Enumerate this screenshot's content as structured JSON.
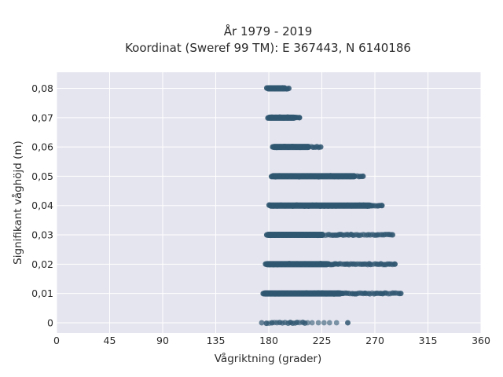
{
  "chart_data": {
    "type": "scatter",
    "title_line1": "År 1979 - 2019",
    "title_line2": "Koordinat (Sweref 99 TM): E 367443, N 6140186",
    "xlabel": "Vågriktning (grader)",
    "ylabel": "Signifikant våghöjd (m)",
    "xlim": [
      0,
      360
    ],
    "ylim": [
      -0.0035,
      0.0855
    ],
    "x_ticks": [
      0,
      45,
      90,
      135,
      180,
      225,
      270,
      315,
      360
    ],
    "x_tick_labels": [
      "0",
      "45",
      "90",
      "135",
      "180",
      "225",
      "270",
      "315",
      "360"
    ],
    "y_ticks": [
      0,
      0.01,
      0.02,
      0.03,
      0.04,
      0.05,
      0.06,
      0.07,
      0.08
    ],
    "y_tick_labels": [
      "0",
      "0,01",
      "0,02",
      "0,03",
      "0,04",
      "0,05",
      "0,06",
      "0,07",
      "0,08"
    ],
    "grid": true,
    "colors": {
      "plot_background": "#e5e5ef",
      "grid": "#ffffff",
      "marker": "#2f5670"
    },
    "series": [
      {
        "height": 0.0,
        "x_min": 174,
        "x_max": 247,
        "dense_end": 213,
        "density": "sparse"
      },
      {
        "height": 0.01,
        "x_min": 174,
        "x_max": 292,
        "dense_end": 243,
        "density": "dense"
      },
      {
        "height": 0.02,
        "x_min": 176,
        "x_max": 287,
        "dense_end": 232,
        "density": "dense"
      },
      {
        "height": 0.03,
        "x_min": 177,
        "x_max": 285,
        "dense_end": 228,
        "density": "dense"
      },
      {
        "height": 0.04,
        "x_min": 179,
        "x_max": 276,
        "dense_end": 268,
        "density": "dense"
      },
      {
        "height": 0.05,
        "x_min": 181,
        "x_max": 260,
        "dense_end": 255,
        "density": "dense"
      },
      {
        "height": 0.06,
        "x_min": 182,
        "x_max": 224,
        "dense_end": 216,
        "density": "dense"
      },
      {
        "height": 0.07,
        "x_min": 178,
        "x_max": 206,
        "dense_end": 204,
        "density": "dense"
      },
      {
        "height": 0.08,
        "x_min": 177,
        "x_max": 197,
        "dense_end": 196,
        "density": "dense"
      }
    ]
  }
}
